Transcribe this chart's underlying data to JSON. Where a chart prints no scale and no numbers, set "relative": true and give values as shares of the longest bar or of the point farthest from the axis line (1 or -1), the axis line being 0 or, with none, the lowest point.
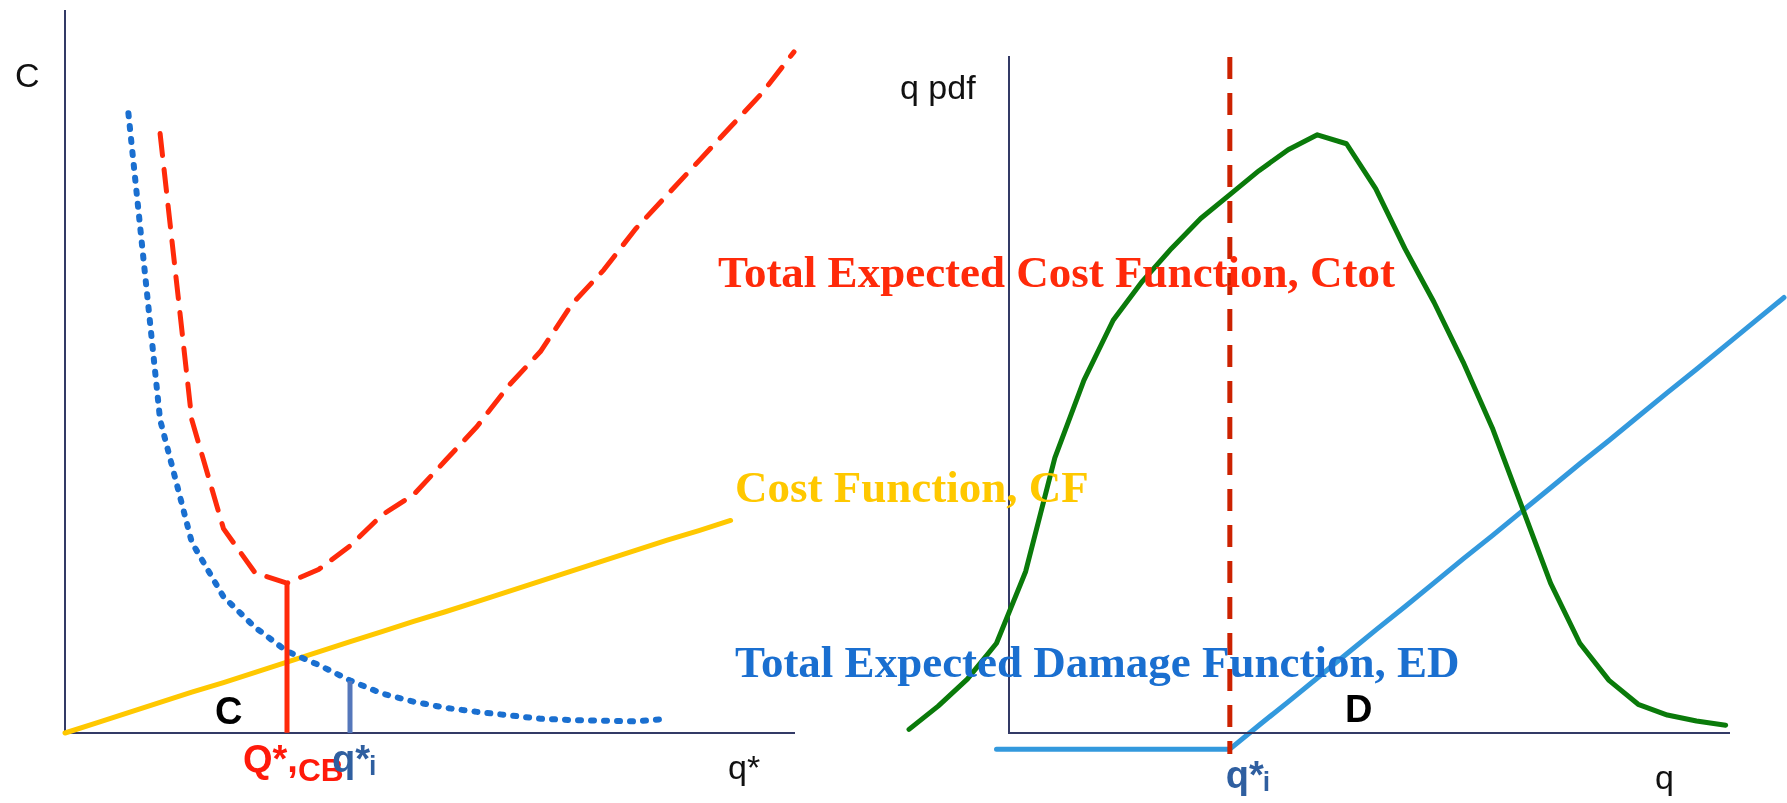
{
  "chart_data": [
    {
      "type": "line",
      "relative": true,
      "xlabel": "q*",
      "ylabel": "C",
      "legend": false,
      "categories": [
        null,
        null,
        null,
        null,
        null,
        null,
        null,
        null,
        null,
        null,
        null,
        null,
        null,
        null,
        null,
        null,
        null,
        null,
        null,
        null,
        null,
        null,
        null,
        null
      ],
      "series": [
        {
          "name": "Total Expected Cost Function, Ctot",
          "color": "#ff2a0a",
          "line_style": "dashed",
          "values": [
            null,
            null,
            null,
            0.88,
            0.46,
            0.3,
            0.235,
            0.22,
            0.24,
            0.275,
            0.32,
            0.35,
            0.4,
            0.45,
            0.51,
            0.56,
            0.63,
            0.68,
            0.74,
            0.79,
            0.84,
            0.89,
            0.94,
            1.0
          ]
        },
        {
          "name": "Total Expected Damage Function, ED",
          "color": "#1a6fd0",
          "line_style": "dotted",
          "values": [
            null,
            null,
            0.91,
            0.46,
            0.28,
            0.2,
            0.155,
            0.12,
            0.1,
            0.077,
            0.058,
            0.046,
            0.037,
            0.031,
            0.026,
            0.021,
            0.019,
            0.018,
            0.017,
            0.021,
            null,
            null,
            null,
            null
          ]
        },
        {
          "name": "Cost Function, CF",
          "color": "#ffc800",
          "line_style": "solid",
          "values": [
            0,
            0.015,
            0.03,
            0.045,
            0.06,
            0.074,
            0.089,
            0.104,
            0.119,
            0.134,
            0.149,
            0.164,
            0.178,
            0.193,
            0.208,
            0.223,
            0.238,
            0.253,
            0.268,
            0.283,
            0.297,
            0.312,
            null,
            null
          ]
        }
      ],
      "annotations": [
        "C",
        "Q*,$_{CB}$",
        "q*ᵢ"
      ]
    },
    {
      "type": "line",
      "relative": true,
      "xlabel": "q",
      "ylabel": "q pdf",
      "legend": false,
      "categories": [
        null,
        null,
        null,
        null,
        null,
        null,
        null,
        null,
        null,
        null,
        null,
        null,
        null,
        null,
        null,
        null,
        null,
        null,
        null,
        null,
        null,
        null,
        null,
        null,
        null,
        null,
        null,
        null,
        null,
        null,
        null
      ],
      "series": [
        {
          "color": "#0a7a0a",
          "line_style": "solid",
          "values": [
            0.006,
            0.045,
            0.09,
            0.15,
            0.27,
            0.46,
            0.59,
            0.69,
            0.755,
            0.81,
            0.86,
            0.9,
            0.94,
            0.975,
            1.0,
            0.985,
            0.91,
            0.81,
            0.72,
            0.62,
            0.51,
            0.38,
            0.25,
            0.15,
            0.088,
            0.048,
            0.03,
            0.02,
            0.013,
            null,
            null
          ]
        },
        {
          "color": "#3399dd",
          "line_style": "solid",
          "values": [
            null,
            null,
            null,
            -0.027,
            -0.027,
            -0.027,
            -0.027,
            -0.027,
            -0.027,
            -0.027,
            -0.027,
            -0.027,
            0.013,
            0.052,
            0.092,
            0.132,
            0.172,
            0.211,
            0.251,
            0.291,
            0.33,
            0.37,
            0.41,
            0.45,
            0.489,
            0.529,
            0.569,
            0.608,
            0.648,
            0.688,
            0.728
          ]
        }
      ],
      "ref_lines": [
        {
          "axis": "x",
          "label": "q*ᵢ",
          "color": "#cc2200",
          "line_style": "dashed"
        }
      ],
      "annotations": [
        "D"
      ]
    }
  ]
}
